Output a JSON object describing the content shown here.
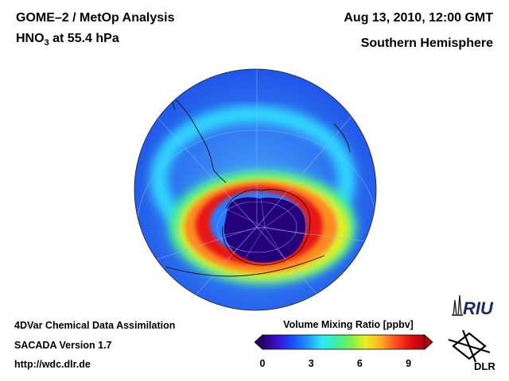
{
  "header": {
    "title_line1": "GOME–2 / MetOp Analysis",
    "species": "HNO",
    "species_sub": "3",
    "level": " at 55.4 hPa",
    "datetime": "Aug 13, 2010, 12:00 GMT",
    "hemisphere": "Southern Hemisphere"
  },
  "footer": {
    "line1": "4DVar Chemical Data Assimilation",
    "line2": "SACADA Version 1.7",
    "line3": "http://wdc.dlr.de"
  },
  "colorbar": {
    "title": "Volume Mixing Ratio [ppbv]",
    "ticks": [
      "0",
      "3",
      "6",
      "9"
    ],
    "tick_values": [
      0,
      3,
      6,
      9
    ],
    "min": 0,
    "max": 10,
    "stops": [
      "#2a0070",
      "#3a10c8",
      "#1a4cff",
      "#1e90ff",
      "#2ee6ff",
      "#3cf0a0",
      "#7cf050",
      "#e8f020",
      "#ffb020",
      "#ff5020",
      "#e01010",
      "#b00010"
    ]
  },
  "logos": {
    "riu": "RIU",
    "dlr": "DLR"
  },
  "map_colors": {
    "outer": "#2e7bff",
    "band": "#2ee6ff",
    "ring_yellow": "#e8f020",
    "ring_orange": "#ff7a20",
    "ring_red": "#e81818",
    "core": "#24007a"
  }
}
